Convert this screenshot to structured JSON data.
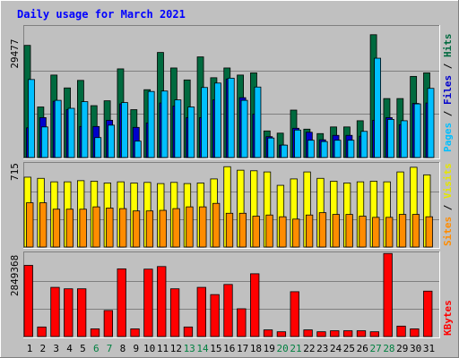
{
  "chart_data": [
    {
      "type": "bar",
      "title": "Daily usage for March 2021",
      "categories": [
        "1",
        "2",
        "3",
        "4",
        "5",
        "6",
        "7",
        "8",
        "9",
        "10",
        "11",
        "12",
        "13",
        "14",
        "15",
        "16",
        "17",
        "18",
        "19",
        "20",
        "21",
        "22",
        "23",
        "24",
        "25",
        "26",
        "27",
        "28",
        "29",
        "30",
        "31"
      ],
      "weekend_days": [
        "6",
        "7",
        "13",
        "14",
        "20",
        "21",
        "27",
        "28"
      ],
      "ylim": [
        0,
        29477
      ],
      "y_tick_label": "29477",
      "right_label": {
        "pages": "Pages",
        "files": "Files",
        "hits": "Hits",
        "sep": " / "
      },
      "series": [
        {
          "name": "Hits",
          "color": "#006a3f",
          "values": [
            25300,
            11400,
            18600,
            15700,
            17400,
            11700,
            12800,
            20000,
            10800,
            15300,
            23700,
            20200,
            17500,
            22700,
            18000,
            20200,
            18600,
            19100,
            6000,
            5500,
            10700,
            6400,
            5400,
            6900,
            6900,
            8300,
            27700,
            13300,
            13300,
            18300,
            19100
          ]
        },
        {
          "name": "Files",
          "color": "#0000cc",
          "values": [
            6700,
            9000,
            12700,
            10800,
            7000,
            7000,
            8400,
            12100,
            6800,
            7800,
            12300,
            11600,
            9000,
            9000,
            13000,
            17700,
            13500,
            9800,
            4700,
            2800,
            6600,
            5700,
            4000,
            5000,
            5000,
            4800,
            8400,
            9000,
            7400,
            12200,
            12300
          ]
        },
        {
          "name": "Pages",
          "color": "#00bfff",
          "values": [
            17600,
            6900,
            12900,
            11100,
            12600,
            4500,
            7300,
            12400,
            3700,
            14900,
            15000,
            13000,
            11400,
            15800,
            16800,
            17900,
            12900,
            15900,
            4400,
            2800,
            6200,
            3900,
            3600,
            3900,
            3900,
            5900,
            22400,
            8600,
            8300,
            12100,
            15600
          ]
        }
      ]
    },
    {
      "type": "bar",
      "categories": [
        "1",
        "2",
        "3",
        "4",
        "5",
        "6",
        "7",
        "8",
        "9",
        "10",
        "11",
        "12",
        "13",
        "14",
        "15",
        "16",
        "17",
        "18",
        "19",
        "20",
        "21",
        "22",
        "23",
        "24",
        "25",
        "26",
        "27",
        "28",
        "29",
        "30",
        "31"
      ],
      "ylim": [
        0,
        715
      ],
      "y_tick_label": "715",
      "right_label": {
        "sites": "Sites",
        "visits": "Visits",
        "sep": " / "
      },
      "series": [
        {
          "name": "Visits",
          "color": "#ffff00",
          "values": [
            600,
            590,
            560,
            560,
            570,
            565,
            550,
            560,
            550,
            555,
            545,
            555,
            545,
            550,
            585,
            690,
            660,
            655,
            645,
            530,
            585,
            645,
            590,
            565,
            550,
            560,
            565,
            560,
            645,
            685,
            620
          ]
        },
        {
          "name": "Sites",
          "color": "#ff8c00",
          "values": [
            380,
            380,
            325,
            325,
            325,
            345,
            335,
            330,
            310,
            310,
            315,
            330,
            345,
            345,
            375,
            290,
            290,
            265,
            275,
            260,
            240,
            275,
            295,
            280,
            280,
            265,
            255,
            255,
            280,
            280,
            260
          ]
        }
      ]
    },
    {
      "type": "bar",
      "categories": [
        "1",
        "2",
        "3",
        "4",
        "5",
        "6",
        "7",
        "8",
        "9",
        "10",
        "11",
        "12",
        "13",
        "14",
        "15",
        "16",
        "17",
        "18",
        "19",
        "20",
        "21",
        "22",
        "23",
        "24",
        "25",
        "26",
        "27",
        "28",
        "29",
        "30",
        "31"
      ],
      "ylim": [
        0,
        2849368
      ],
      "y_tick_label": "2849368",
      "right_label": {
        "kbytes": "KBytes"
      },
      "series": [
        {
          "name": "KBytes",
          "color": "#ff0000",
          "values": [
            2460000,
            330000,
            1700000,
            1650000,
            1650000,
            265000,
            900000,
            2340000,
            265000,
            2330000,
            2420000,
            1650000,
            330000,
            1700000,
            1450000,
            1800000,
            960000,
            2170000,
            230000,
            165000,
            1550000,
            230000,
            165000,
            200000,
            200000,
            200000,
            165000,
            2870000,
            360000,
            265000,
            1570000
          ]
        }
      ]
    }
  ]
}
